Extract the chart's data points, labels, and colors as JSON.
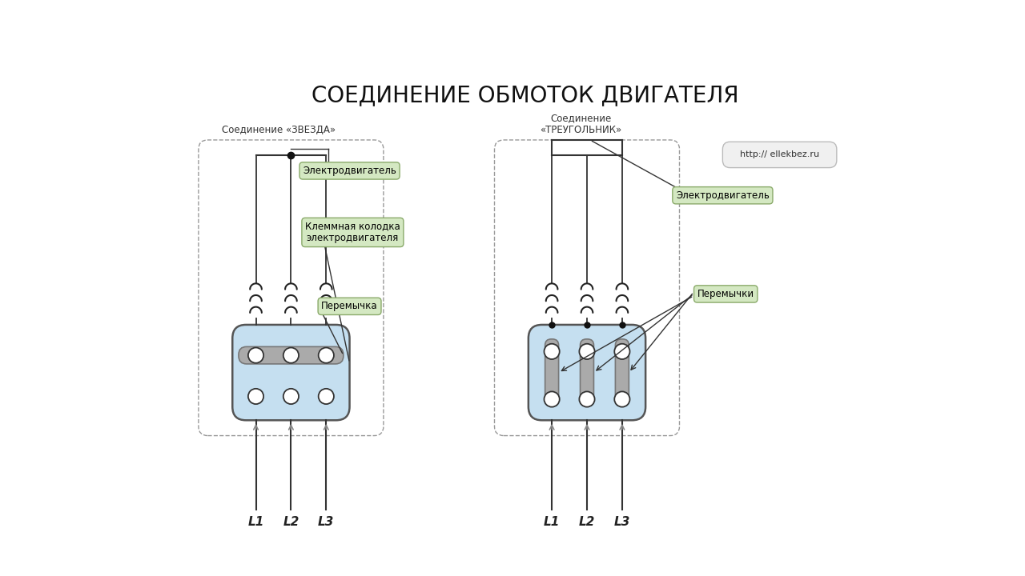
{
  "title": "СОЕДИНЕНИЕ ОБМОТОК ДВИГАТЕЛЯ",
  "title_fontsize": 20,
  "bg_color": "#ffffff",
  "label_star": "Соединение «ЗВЕЗДА»",
  "label_triangle": "Соединение\n«ТРЕУГОЛЬНИК»",
  "label_url": "http:// ellekbez.ru",
  "label_electromotor": "Электродвигатель",
  "label_klemma": "Клеммная колодка\nэлектродвигателя",
  "label_peremychka": "Перемычка",
  "label_peremychki": "Перемычки",
  "box_fill": "#d4e8c2",
  "box_edge": "#8aaa6a",
  "terminal_fill": "#c5dff0",
  "terminal_edge": "#555555",
  "bridge_fill": "#aaaaaa",
  "bridge_edge": "#777777",
  "hole_fill": "#ffffff",
  "hole_edge": "#333333",
  "wire_color": "#333333",
  "dot_color": "#111111",
  "outer_box_edge": "#999999",
  "coil_color": "#222222",
  "url_box_fill": "#f0f0f0",
  "url_box_edge": "#bbbbbb"
}
